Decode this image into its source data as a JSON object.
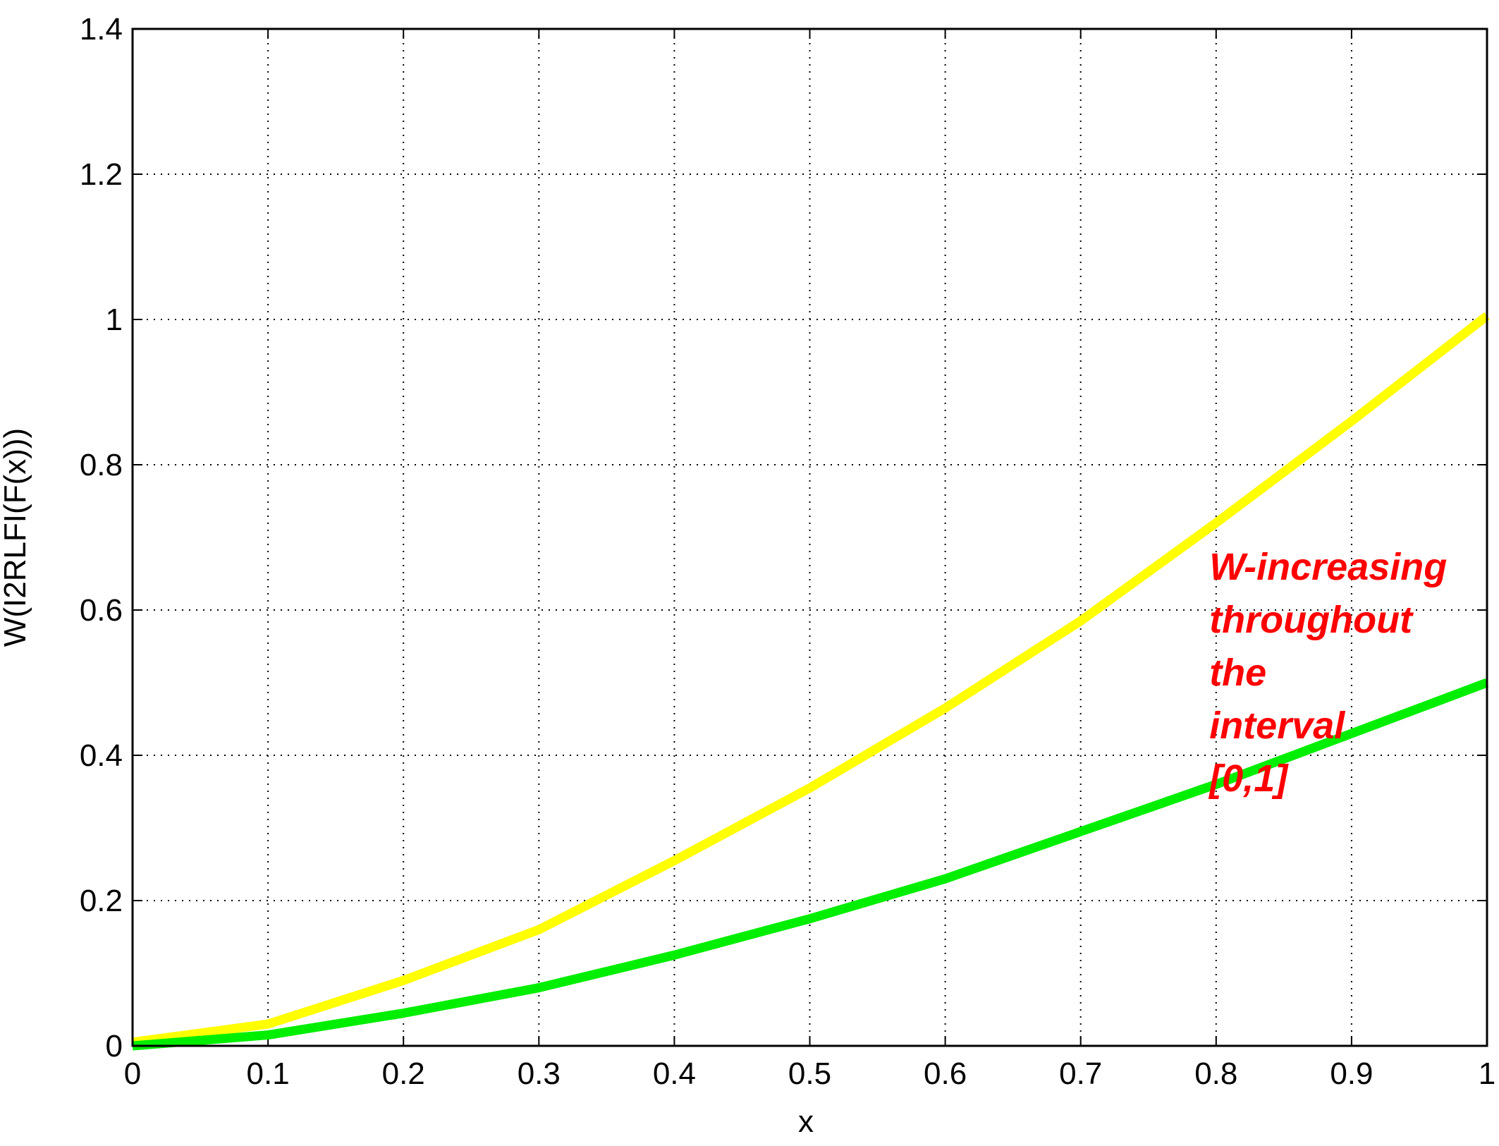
{
  "chart_data": {
    "type": "line",
    "x_label": "x",
    "y_label": "W(I2RLFI(F(x)))",
    "x": [
      0,
      0.1,
      0.2,
      0.3,
      0.4,
      0.5,
      0.6,
      0.7,
      0.8,
      0.9,
      1
    ],
    "series": [
      {
        "color": "#ffff00",
        "values": [
          0.005,
          0.03,
          0.09,
          0.16,
          0.255,
          0.355,
          0.465,
          0.585,
          0.72,
          0.86,
          1.005
        ]
      },
      {
        "color": "#00ee00",
        "values": [
          0,
          0.015,
          0.045,
          0.08,
          0.125,
          0.175,
          0.23,
          0.295,
          0.36,
          0.43,
          0.5
        ]
      }
    ],
    "xlim": [
      0,
      1
    ],
    "ylim": [
      0,
      1.4
    ],
    "xticks": [
      0,
      0.1,
      0.2,
      0.3,
      0.4,
      0.5,
      0.6,
      0.7,
      0.8,
      0.9,
      1
    ],
    "yticks": [
      0,
      0.2,
      0.4,
      0.6,
      0.8,
      1,
      1.2,
      1.4
    ],
    "grid": true,
    "annotation": [
      "W-increasing",
      "throughout",
      "the",
      "interval",
      "[0,1]"
    ]
  }
}
